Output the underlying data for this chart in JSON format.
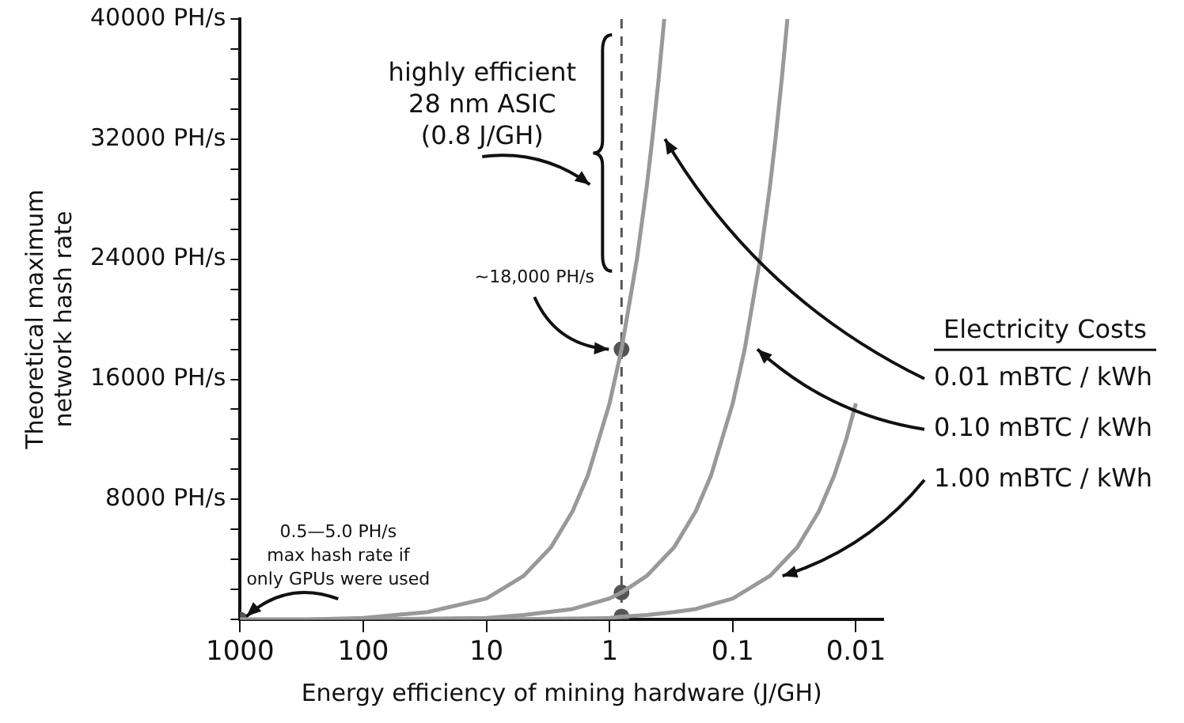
{
  "chart_data": {
    "type": "line",
    "xlabel": "Energy efficiency of mining hardware (J/GH)",
    "ylabel": "Theoretical maximum\nnetwork hash rate",
    "legend_title": "Electricity Costs",
    "legend": "right",
    "log": "x",
    "grid": false,
    "marker": "none",
    "line_style": "solid",
    "xlim": [
      1000,
      0.006
    ],
    "xticks": [
      1000,
      100,
      10,
      1,
      0.1,
      0.01
    ],
    "ylim": [
      0,
      40000
    ],
    "yticks": [
      {
        "value": 0,
        "label": null
      },
      {
        "value": 2000,
        "label": null
      },
      {
        "value": 4000,
        "label": null
      },
      {
        "value": 6000,
        "label": null
      },
      {
        "value": 8000,
        "label": "8000 PH/s"
      },
      {
        "value": 10000,
        "label": null
      },
      {
        "value": 12000,
        "label": null
      },
      {
        "value": 14000,
        "label": null
      },
      {
        "value": 16000,
        "label": "16000 PH/s"
      },
      {
        "value": 18000,
        "label": null
      },
      {
        "value": 20000,
        "label": null
      },
      {
        "value": 22000,
        "label": null
      },
      {
        "value": 24000,
        "label": "24000 PH/s"
      },
      {
        "value": 26000,
        "label": null
      },
      {
        "value": 28000,
        "label": null
      },
      {
        "value": 30000,
        "label": null
      },
      {
        "value": 32000,
        "label": "32000 PH/s"
      },
      {
        "value": 34000,
        "label": null
      },
      {
        "value": 36000,
        "label": null
      },
      {
        "value": 38000,
        "label": null
      },
      {
        "value": 40000,
        "label": "40000 PH/s"
      }
    ],
    "series": [
      {
        "name": "0.01 mBTC / kWh",
        "color": "#999999",
        "x": [
          1000,
          300,
          100,
          30,
          10,
          5,
          3,
          2,
          1.5,
          1,
          0.8,
          0.6,
          0.5,
          0.45,
          0.4,
          0.36
        ],
        "values": [
          0,
          0,
          100,
          500,
          1400,
          2900,
          4800,
          7200,
          9600,
          14400,
          18000,
          24000,
          28800,
          32000,
          36000,
          40000
        ]
      },
      {
        "name": "0.10 mBTC / kWh",
        "color": "#999999",
        "x": [
          1000,
          100,
          10,
          5,
          2,
          1,
          0.8,
          0.5,
          0.3,
          0.2,
          0.15,
          0.1,
          0.08,
          0.06,
          0.05,
          0.045,
          0.04,
          0.036
        ],
        "values": [
          0,
          0,
          100,
          300,
          700,
          1400,
          1800,
          2900,
          4800,
          7200,
          9600,
          14400,
          18000,
          24000,
          28800,
          32000,
          36000,
          40000
        ]
      },
      {
        "name": "1.00 mBTC / kWh",
        "color": "#999999",
        "x": [
          1000,
          100,
          10,
          1,
          0.8,
          0.5,
          0.3,
          0.2,
          0.1,
          0.05,
          0.03,
          0.02,
          0.015,
          0.012,
          0.01
        ],
        "values": [
          0,
          0,
          0,
          100,
          200,
          300,
          500,
          700,
          1400,
          2900,
          4800,
          7200,
          9600,
          12000,
          14400
        ]
      },
      {
        "type": "scatter",
        "marker": "circle",
        "color": "#555555",
        "x": [
          1000,
          0.8,
          0.8,
          0.8
        ],
        "values": [
          0,
          18000,
          1800,
          200
        ]
      }
    ],
    "ref_lines": [
      {
        "axis": "x",
        "value": 0.8,
        "label": "highly efficient\n28 nm ASIC\n(0.8 J/GH)",
        "line_style": "dashed",
        "color": "#555555"
      }
    ],
    "annotations": [
      {
        "text": "~18,000 PH/s",
        "x": 0.8,
        "y": 18000
      },
      {
        "text": "0.5—5.0 PH/s\nmax hash rate if\nonly GPUs were used",
        "x": 1000,
        "y": 0
      }
    ]
  }
}
